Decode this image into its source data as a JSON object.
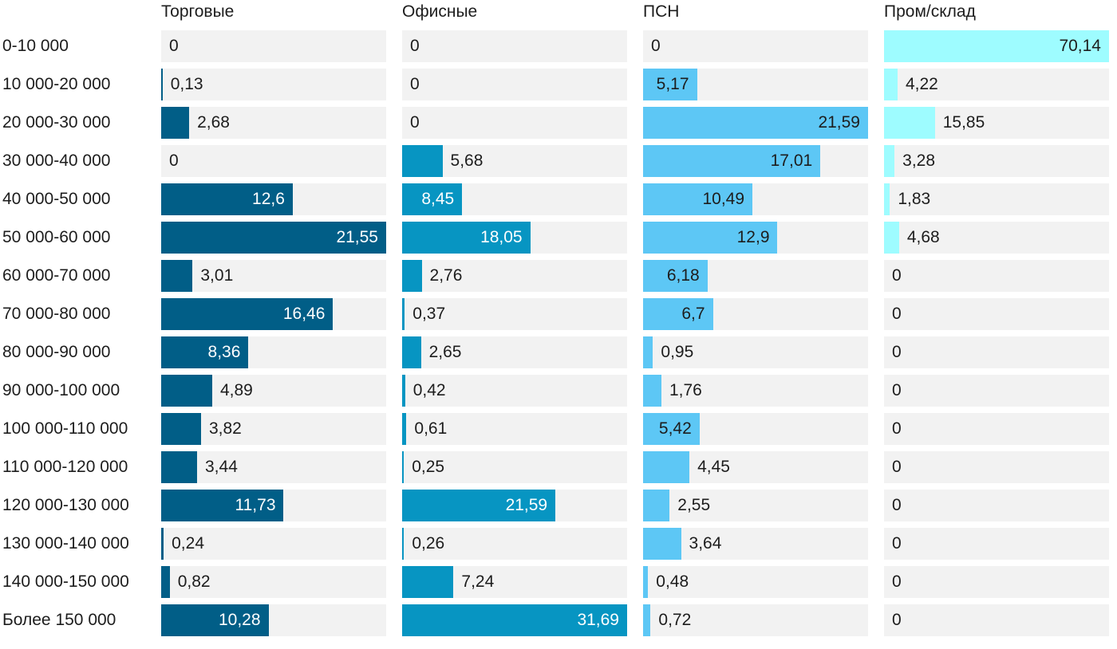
{
  "chart_data": {
    "type": "bar",
    "categories": [
      "0-10 000",
      "10 000-20 000",
      "20 000-30 000",
      "30 000-40 000",
      "40 000-50 000",
      "50 000-60 000",
      "60 000-70 000",
      "70 000-80 000",
      "80 000-90 000",
      "90 000-100 000",
      "100 000-110 000",
      "110 000-120 000",
      "120 000-130 000",
      "130 000-140 000",
      "140 000-150 000",
      "Более 150 000"
    ],
    "series": [
      {
        "name": "Торговые",
        "color": "#015e87",
        "text_inside": "#ffffff",
        "values": [
          0,
          0.13,
          2.68,
          0,
          12.6,
          21.55,
          3.01,
          16.46,
          8.36,
          4.89,
          3.82,
          3.44,
          11.73,
          0.24,
          0.82,
          10.28
        ]
      },
      {
        "name": "Офисные",
        "color": "#0795c2",
        "text_inside": "#ffffff",
        "values": [
          0,
          0,
          0,
          5.68,
          8.45,
          18.05,
          2.76,
          0.37,
          2.65,
          0.42,
          0.61,
          0.25,
          21.59,
          0.26,
          7.24,
          31.69
        ]
      },
      {
        "name": "ПСН",
        "color": "#5dc7f5",
        "text_inside": "#1d1d1d",
        "values": [
          0,
          5.17,
          21.59,
          17.01,
          10.49,
          12.9,
          6.18,
          6.7,
          0.95,
          1.76,
          5.42,
          4.45,
          2.55,
          3.64,
          0.48,
          0.72
        ]
      },
      {
        "name": "Пром/склад",
        "color": "#9efcff",
        "text_inside": "#1d1d1d",
        "values": [
          70.14,
          4.22,
          15.85,
          3.28,
          1.83,
          4.68,
          0,
          0,
          0,
          0,
          0,
          0,
          0,
          0,
          0,
          0
        ]
      }
    ],
    "background_color": "#f2f2f2",
    "title": "",
    "xlabel": "",
    "ylabel": "",
    "layout": "split bars, each column scaled to its own maximum",
    "grid": false
  }
}
